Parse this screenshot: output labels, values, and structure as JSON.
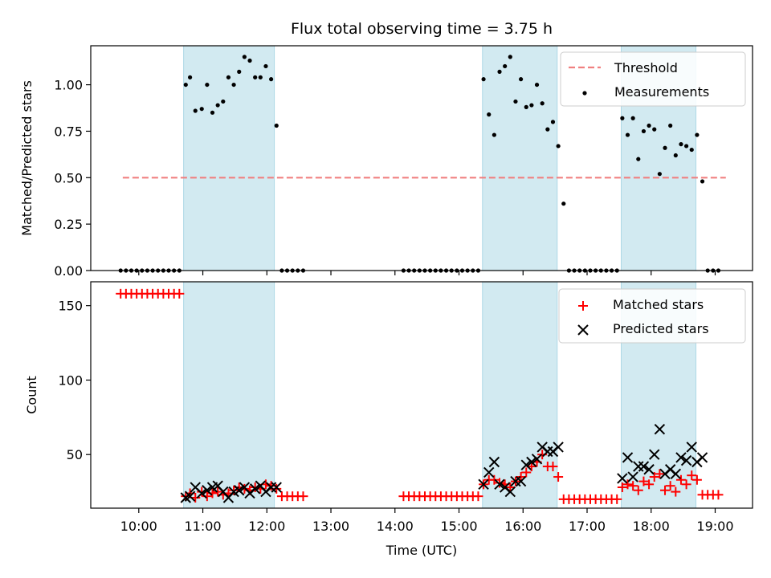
{
  "chart_data": [
    {
      "type": "scatter",
      "title": "Flux total observing time = 3.75 h",
      "xlabel": "",
      "ylabel": "Matched/Predicted stars",
      "ylim": [
        0,
        1.21
      ],
      "yticks": [
        0.0,
        0.25,
        0.5,
        0.75,
        1.0
      ],
      "ytick_labels": [
        "0.00",
        "0.25",
        "0.50",
        "0.75",
        "1.00"
      ],
      "legend_position": "top-right",
      "legend": [
        "Threshold",
        "Measurements"
      ],
      "colors": {
        "threshold": "#f08080",
        "measurements": "#000000",
        "shade": "#add8e6"
      },
      "threshold": {
        "name": "Threshold",
        "y": 0.5,
        "x_range": [
          "09:45",
          "19:10"
        ]
      },
      "shaded_intervals": [
        [
          "10:42",
          "12:07"
        ],
        [
          "15:22",
          "16:32"
        ],
        [
          "17:32",
          "18:42"
        ]
      ],
      "series": [
        {
          "name": "Measurements",
          "x": [
            "09:43",
            "09:48",
            "09:53",
            "09:58",
            "10:03",
            "10:08",
            "10:13",
            "10:18",
            "10:23",
            "10:28",
            "10:33",
            "10:38",
            "10:44",
            "10:48",
            "10:53",
            "10:59",
            "11:04",
            "11:09",
            "11:14",
            "11:19",
            "11:24",
            "11:29",
            "11:34",
            "11:39",
            "11:44",
            "11:49",
            "11:54",
            "11:59",
            "12:04",
            "12:09",
            "12:14",
            "12:19",
            "12:24",
            "12:29",
            "12:34",
            "14:08",
            "14:13",
            "14:18",
            "14:23",
            "14:28",
            "14:33",
            "14:38",
            "14:43",
            "14:48",
            "14:53",
            "14:58",
            "15:03",
            "15:08",
            "15:13",
            "15:18",
            "15:23",
            "15:28",
            "15:33",
            "15:38",
            "15:43",
            "15:48",
            "15:53",
            "15:58",
            "16:03",
            "16:08",
            "16:13",
            "16:18",
            "16:23",
            "16:28",
            "16:33",
            "16:38",
            "16:43",
            "16:48",
            "16:53",
            "16:58",
            "17:03",
            "17:08",
            "17:13",
            "17:18",
            "17:23",
            "17:28",
            "17:33",
            "17:38",
            "17:43",
            "17:48",
            "17:53",
            "17:58",
            "18:03",
            "18:08",
            "18:13",
            "18:18",
            "18:23",
            "18:28",
            "18:33",
            "18:38",
            "18:43",
            "18:48",
            "18:53",
            "18:58",
            "19:03"
          ],
          "y": [
            0,
            0,
            0,
            0,
            0,
            0,
            0,
            0,
            0,
            0,
            0,
            0,
            1.0,
            1.04,
            0.86,
            0.87,
            1.0,
            0.85,
            0.89,
            0.91,
            1.04,
            1.0,
            1.07,
            1.15,
            1.13,
            1.04,
            1.04,
            1.1,
            1.03,
            0.78,
            0,
            0,
            0,
            0,
            0,
            0,
            0,
            0,
            0,
            0,
            0,
            0,
            0,
            0,
            0,
            0,
            0,
            0,
            0,
            0,
            1.03,
            0.84,
            0.73,
            1.07,
            1.1,
            1.15,
            0.91,
            1.03,
            0.88,
            0.89,
            1.0,
            0.9,
            0.76,
            0.8,
            0.67,
            0.36,
            0,
            0,
            0,
            0,
            0,
            0,
            0,
            0,
            0,
            0,
            0.82,
            0.73,
            0.82,
            0.6,
            0.75,
            0.78,
            0.76,
            0.52,
            0.66,
            0.78,
            0.62,
            0.68,
            0.67,
            0.65,
            0.73,
            0.48,
            0,
            0,
            0
          ]
        }
      ]
    },
    {
      "type": "scatter",
      "title": "",
      "xlabel": "Time (UTC)",
      "ylabel": "Count",
      "ylim": [
        14,
        166
      ],
      "yticks": [
        50,
        100,
        150
      ],
      "ytick_labels": [
        "50",
        "100",
        "150"
      ],
      "xticks": [
        "10:00",
        "11:00",
        "12:00",
        "13:00",
        "14:00",
        "15:00",
        "16:00",
        "17:00",
        "18:00",
        "19:00"
      ],
      "xlim": [
        "09:15",
        "19:35"
      ],
      "legend_position": "top-right",
      "legend": [
        "Matched stars",
        "Predicted stars"
      ],
      "colors": {
        "matched": "#ff0000",
        "predicted": "#000000",
        "shade": "#add8e6"
      },
      "shaded_intervals": [
        [
          "10:42",
          "12:07"
        ],
        [
          "15:22",
          "16:32"
        ],
        [
          "17:32",
          "18:42"
        ]
      ],
      "series": [
        {
          "name": "Matched stars",
          "x": [
            "09:43",
            "09:48",
            "09:53",
            "09:58",
            "10:03",
            "10:08",
            "10:13",
            "10:18",
            "10:23",
            "10:28",
            "10:33",
            "10:38",
            "10:44",
            "10:48",
            "10:53",
            "10:59",
            "11:04",
            "11:09",
            "11:14",
            "11:19",
            "11:24",
            "11:29",
            "11:34",
            "11:39",
            "11:44",
            "11:49",
            "11:54",
            "11:59",
            "12:04",
            "12:09",
            "12:14",
            "12:19",
            "12:24",
            "12:29",
            "12:34",
            "14:08",
            "14:13",
            "14:18",
            "14:23",
            "14:28",
            "14:33",
            "14:38",
            "14:43",
            "14:48",
            "14:53",
            "14:58",
            "15:03",
            "15:08",
            "15:13",
            "15:18",
            "15:23",
            "15:28",
            "15:33",
            "15:38",
            "15:43",
            "15:48",
            "15:53",
            "15:58",
            "16:03",
            "16:08",
            "16:13",
            "16:18",
            "16:23",
            "16:28",
            "16:33",
            "16:38",
            "16:43",
            "16:48",
            "16:53",
            "16:58",
            "17:03",
            "17:08",
            "17:13",
            "17:18",
            "17:23",
            "17:28",
            "17:33",
            "17:38",
            "17:43",
            "17:48",
            "17:53",
            "17:58",
            "18:03",
            "18:08",
            "18:13",
            "18:18",
            "18:23",
            "18:28",
            "18:33",
            "18:38",
            "18:43",
            "18:48",
            "18:53",
            "18:58",
            "19:03"
          ],
          "y": [
            158,
            158,
            158,
            158,
            158,
            158,
            158,
            158,
            158,
            158,
            158,
            158,
            22,
            24,
            21,
            25,
            22,
            24,
            25,
            23,
            24,
            26,
            28,
            27,
            26,
            28,
            27,
            30,
            29,
            27,
            22,
            22,
            22,
            22,
            22,
            22,
            22,
            22,
            22,
            22,
            22,
            22,
            22,
            22,
            22,
            22,
            22,
            22,
            22,
            22,
            30,
            33,
            33,
            31,
            30,
            28,
            32,
            35,
            38,
            42,
            45,
            50,
            42,
            42,
            35,
            20,
            20,
            20,
            20,
            20,
            20,
            20,
            20,
            20,
            20,
            20,
            28,
            30,
            29,
            26,
            32,
            30,
            35,
            37,
            26,
            29,
            25,
            33,
            30,
            36,
            33,
            23,
            23,
            23,
            23
          ]
        },
        {
          "name": "Predicted stars",
          "x": [
            "10:44",
            "10:48",
            "10:53",
            "10:59",
            "11:04",
            "11:09",
            "11:14",
            "11:19",
            "11:24",
            "11:29",
            "11:34",
            "11:39",
            "11:44",
            "11:49",
            "11:54",
            "11:59",
            "12:04",
            "12:09",
            "15:23",
            "15:28",
            "15:33",
            "15:38",
            "15:43",
            "15:48",
            "15:53",
            "15:58",
            "16:03",
            "16:08",
            "16:13",
            "16:18",
            "16:23",
            "16:28",
            "16:33",
            "17:33",
            "17:38",
            "17:43",
            "17:48",
            "17:53",
            "17:58",
            "18:03",
            "18:08",
            "18:13",
            "18:18",
            "18:23",
            "18:28",
            "18:33",
            "18:38",
            "18:43",
            "18:48"
          ],
          "y": [
            21,
            22,
            28,
            24,
            26,
            28,
            29,
            25,
            21,
            25,
            26,
            28,
            24,
            27,
            29,
            25,
            28,
            28,
            30,
            38,
            45,
            30,
            28,
            25,
            32,
            32,
            43,
            45,
            47,
            55,
            52,
            52,
            55,
            34,
            48,
            35,
            42,
            42,
            40,
            50,
            67,
            37,
            40,
            37,
            48,
            46,
            55,
            45,
            48
          ]
        }
      ]
    }
  ]
}
